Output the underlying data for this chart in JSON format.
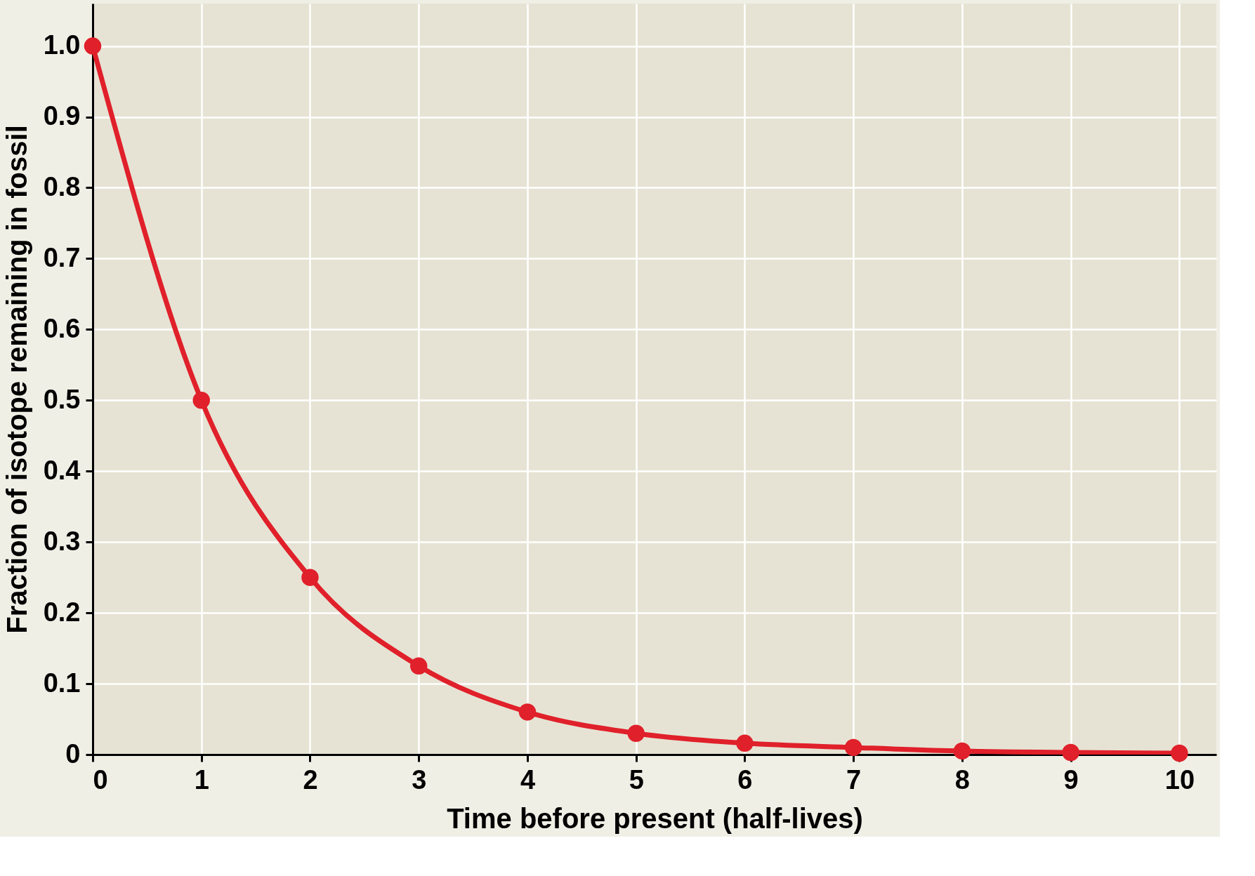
{
  "chart_data": {
    "type": "line",
    "xlabel": "Time before present (half-lives)",
    "ylabel": "Fraction of isotope remaining in fossil",
    "x": [
      0,
      1,
      2,
      3,
      4,
      5,
      6,
      7,
      8,
      9,
      10
    ],
    "series": [
      {
        "color": "#e0202a",
        "values": [
          1.0,
          0.5,
          0.25,
          0.125,
          0.06,
          0.03,
          0.016,
          0.01,
          0.005,
          0.003,
          0.002
        ]
      }
    ],
    "xlim": [
      0,
      10.34
    ],
    "xticks": [
      0,
      1,
      2,
      3,
      4,
      5,
      6,
      7,
      8,
      9,
      10
    ],
    "ylim": [
      0,
      1.06
    ],
    "yticks": [
      0,
      0.1,
      0.2,
      0.3,
      0.4,
      0.5,
      0.6,
      0.7,
      0.8,
      0.9,
      {
        "value": 1.0,
        "label": "1.0"
      }
    ],
    "grid": true,
    "marker": "circle",
    "line_style": "solid"
  }
}
